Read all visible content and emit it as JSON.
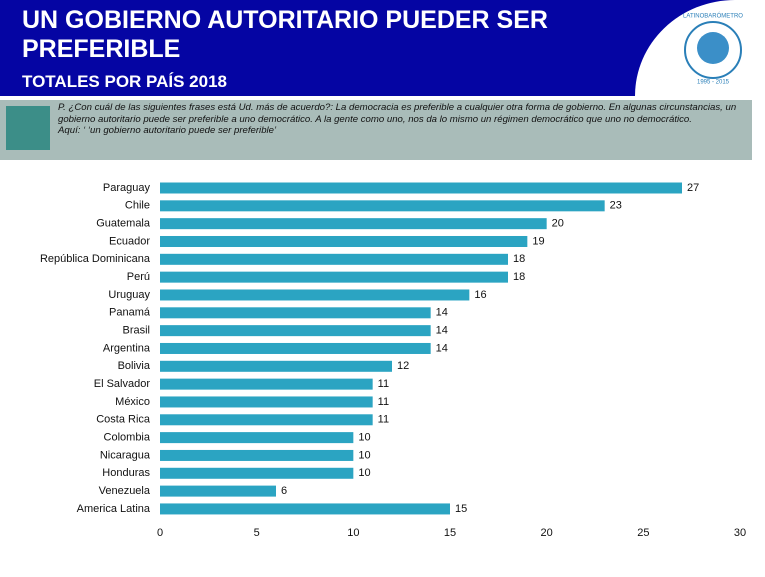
{
  "header": {
    "title": "UN GOBIERNO AUTORITARIO PUEDER SER PREFERIBLE",
    "subtitle": "TOTALES POR PAÍS  2018",
    "logo_name": "LATINOBARÓMETRO",
    "logo_years": "1995 - 2015"
  },
  "question": {
    "text": "P. ¿Con cuál de las siguientes frases está Ud. más de acuerdo?: La democracia es preferible a cualquier otra forma de gobierno. En algunas circunstancias, un gobierno autoritario puede ser preferible a uno democrático. A la gente como uno, nos da lo mismo un régimen democrático que uno no democrático.",
    "aqui": "Aquí: ‘ ‘un gobierno autoritario puede ser preferible’"
  },
  "chart_data": {
    "type": "hbar",
    "categories": [
      "Paraguay",
      "Chile",
      "Guatemala",
      "Ecuador",
      "República Dominicana",
      "Perú",
      "Uruguay",
      "Panamá",
      "Brasil",
      "Argentina",
      "Bolivia",
      "El Salvador",
      "México",
      "Costa Rica",
      "Colombia",
      "Nicaragua",
      "Honduras",
      "Venezuela",
      "America Latina"
    ],
    "values": [
      27,
      23,
      20,
      19,
      18,
      18,
      16,
      14,
      14,
      14,
      12,
      11,
      11,
      11,
      10,
      10,
      10,
      6,
      15
    ],
    "color": "#2ba4c2",
    "xlim": [
      0,
      30
    ],
    "xticks": [
      0,
      5,
      10,
      15,
      20,
      25,
      30
    ],
    "grid": false
  }
}
